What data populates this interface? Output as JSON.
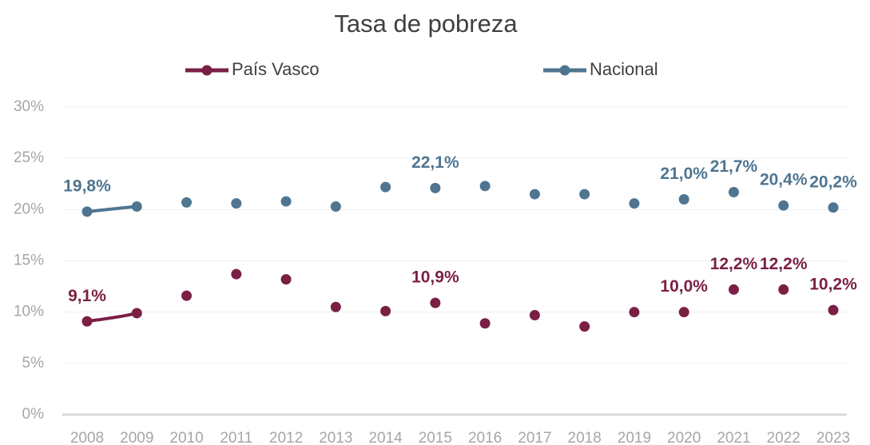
{
  "chart_data": {
    "type": "line",
    "title": "Tasa de pobreza",
    "categories": [
      "2008",
      "2009",
      "2010",
      "2011",
      "2012",
      "2013",
      "2014",
      "2015",
      "2016",
      "2017",
      "2018",
      "2019",
      "2020",
      "2021",
      "2022",
      "2023"
    ],
    "series": [
      {
        "name": "País Vasco",
        "color": "#7b1f45",
        "values": [
          9.1,
          9.9,
          11.6,
          13.7,
          13.2,
          10.5,
          10.1,
          10.9,
          8.9,
          9.7,
          8.6,
          10.0,
          10.0,
          12.2,
          12.2,
          10.2
        ],
        "value_labels": [
          "9,1%",
          null,
          null,
          null,
          null,
          null,
          null,
          "10,9%",
          null,
          null,
          null,
          null,
          "10,0%",
          "12,2%",
          "12,2%",
          "10,2%"
        ]
      },
      {
        "name": "Nacional",
        "color": "#4f7591",
        "values": [
          19.8,
          20.3,
          20.7,
          20.6,
          20.8,
          20.3,
          22.2,
          22.1,
          22.3,
          21.5,
          21.5,
          20.6,
          21.0,
          21.7,
          20.4,
          20.2
        ],
        "value_labels": [
          "19,8%",
          null,
          null,
          null,
          null,
          null,
          null,
          "22,1%",
          null,
          null,
          null,
          null,
          "21,0%",
          "21,7%",
          "20,4%",
          "20,2%"
        ]
      }
    ],
    "ylim": [
      0,
      30
    ],
    "yticks": [
      {
        "value": 0,
        "label": "0%"
      },
      {
        "value": 5,
        "label": "5%"
      },
      {
        "value": 10,
        "label": "10%"
      },
      {
        "value": 15,
        "label": "15%"
      },
      {
        "value": 20,
        "label": "20%"
      },
      {
        "value": 25,
        "label": "25%"
      },
      {
        "value": 30,
        "label": "30%"
      }
    ],
    "grid": true,
    "legend": "top",
    "smooth": true
  }
}
